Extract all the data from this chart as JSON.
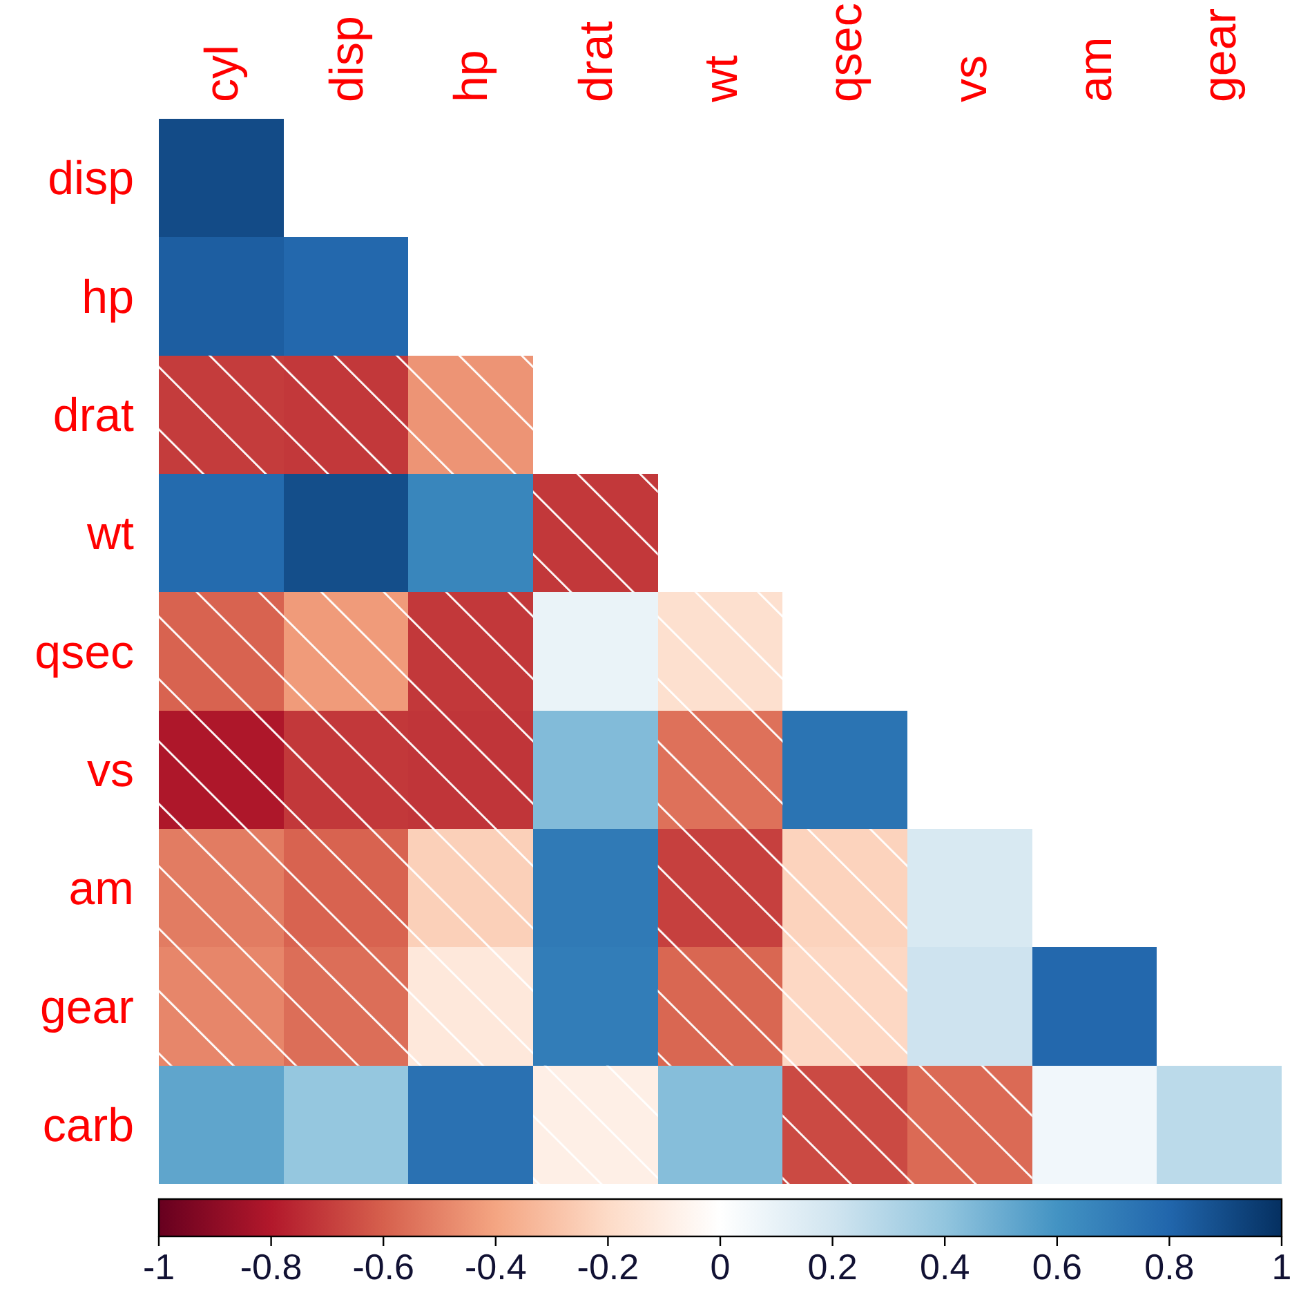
{
  "chart_data": {
    "type": "heatmap",
    "categories": [
      "cyl",
      "disp",
      "hp",
      "drat",
      "wt",
      "qsec",
      "vs",
      "am",
      "gear"
    ],
    "y_categories": [
      "disp",
      "hp",
      "drat",
      "wt",
      "qsec",
      "vs",
      "am",
      "gear",
      "carb"
    ],
    "cells": [
      [
        0.9,
        null,
        null,
        null,
        null,
        null,
        null,
        null,
        null
      ],
      [
        0.83,
        0.79,
        null,
        null,
        null,
        null,
        null,
        null,
        null
      ],
      [
        -0.7,
        -0.71,
        -0.45,
        null,
        null,
        null,
        null,
        null,
        null
      ],
      [
        0.78,
        0.89,
        0.66,
        -0.71,
        null,
        null,
        null,
        null,
        null
      ],
      [
        -0.59,
        -0.43,
        -0.71,
        0.09,
        -0.17,
        null,
        null,
        null,
        null
      ],
      [
        -0.81,
        -0.71,
        -0.72,
        0.44,
        -0.55,
        0.74,
        null,
        null,
        null
      ],
      [
        -0.52,
        -0.59,
        -0.24,
        0.71,
        -0.69,
        -0.23,
        0.17,
        null,
        null
      ],
      [
        -0.49,
        -0.56,
        -0.13,
        0.7,
        -0.58,
        -0.21,
        0.21,
        0.79,
        null
      ],
      [
        0.53,
        0.39,
        0.75,
        -0.09,
        0.43,
        -0.66,
        -0.57,
        0.06,
        0.27
      ]
    ],
    "clim": [
      -1,
      1
    ],
    "cticks": [
      -1,
      -0.8,
      -0.6,
      -0.4,
      -0.2,
      0,
      0.2,
      0.4,
      0.6,
      0.8,
      1
    ]
  }
}
